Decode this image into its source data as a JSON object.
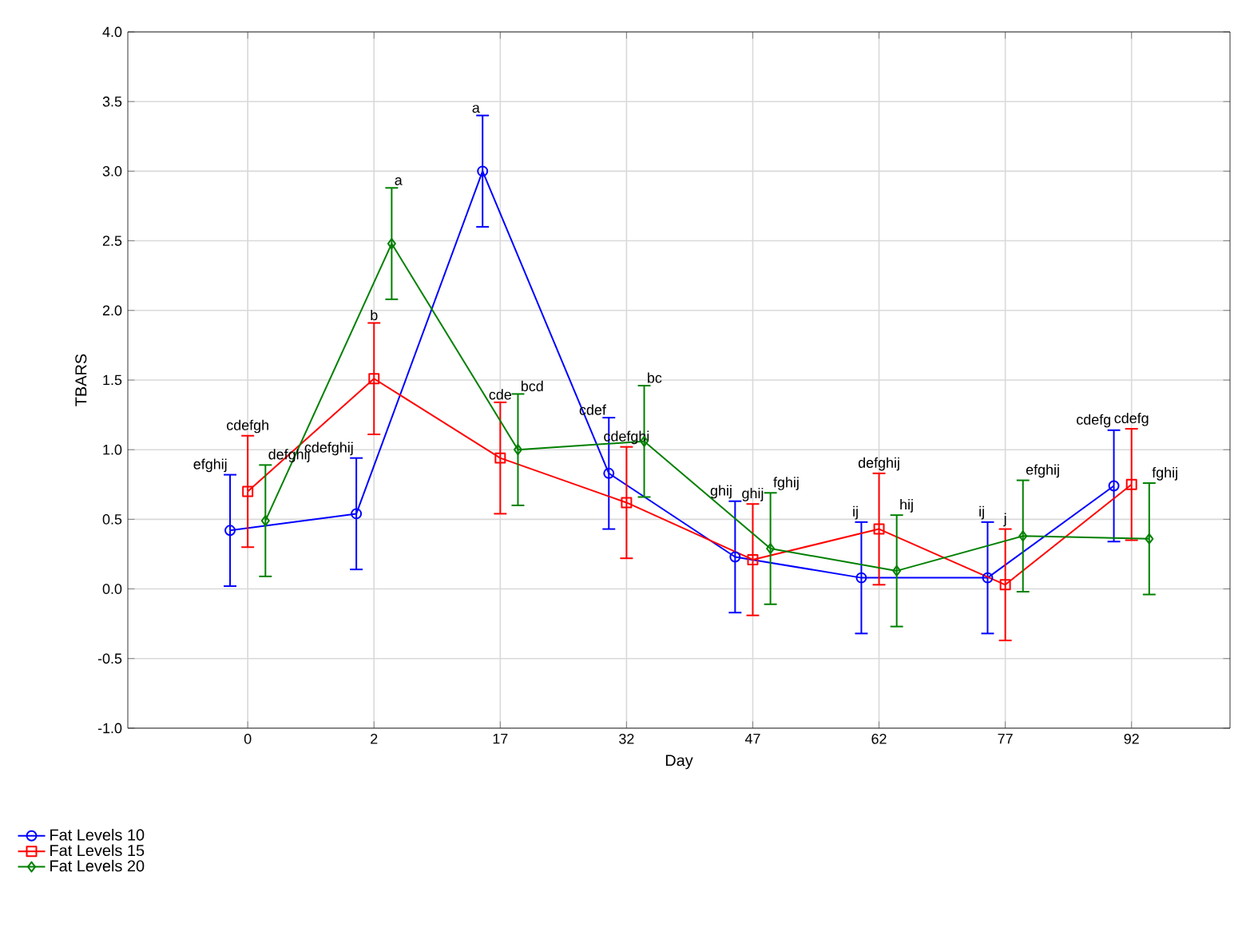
{
  "chart_data": {
    "type": "line",
    "xlabel": "Day",
    "ylabel": "TBARS",
    "categories": [
      "0",
      "2",
      "17",
      "32",
      "47",
      "62",
      "77",
      "92"
    ],
    "series": [
      {
        "name": "Fat Levels      10",
        "color": "#0000ff",
        "marker": "circle",
        "values": [
          0.42,
          0.54,
          3.0,
          0.83,
          0.23,
          0.08,
          0.08,
          0.74
        ],
        "errors": [
          0.4,
          0.4,
          0.4,
          0.4,
          0.4,
          0.4,
          0.4,
          0.4
        ]
      },
      {
        "name": "Fat Levels      15",
        "color": "#ff0000",
        "marker": "square",
        "values": [
          0.7,
          1.51,
          0.94,
          0.62,
          0.21,
          0.43,
          0.03,
          0.75
        ],
        "errors": [
          0.4,
          0.4,
          0.4,
          0.4,
          0.4,
          0.4,
          0.4,
          0.4
        ]
      },
      {
        "name": "Fat Levels      20",
        "color": "#008000",
        "marker": "diamond",
        "values": [
          0.49,
          2.48,
          1.0,
          1.06,
          0.29,
          0.13,
          0.38,
          0.36
        ],
        "errors": [
          0.4,
          0.4,
          0.4,
          0.4,
          0.4,
          0.4,
          0.4,
          0.4
        ]
      }
    ],
    "ylim": [
      -1.0,
      4.0
    ],
    "yticks": [
      {
        "value": -1.0,
        "label": "-1.0"
      },
      {
        "value": -0.5,
        "label": "-0.5"
      },
      {
        "value": 0.0,
        "label": "0.0"
      },
      {
        "value": 0.5,
        "label": "0.5"
      },
      {
        "value": 1.0,
        "label": "1.0"
      },
      {
        "value": 1.5,
        "label": "1.5"
      },
      {
        "value": 2.0,
        "label": "2.0"
      },
      {
        "value": 2.5,
        "label": "2.5"
      },
      {
        "value": 3.0,
        "label": "3.0"
      },
      {
        "value": 3.5,
        "label": "3.5"
      },
      {
        "value": 4.0,
        "label": "4.0"
      }
    ],
    "grid": true,
    "legend": "bottom left",
    "line_style": "solid",
    "annotations": [
      "efghij",
      "cdefghij",
      "a",
      "cdef",
      "ghij",
      "ij",
      "ij",
      "cdefg",
      "cdefgh",
      "b",
      "cde",
      "cdefghi",
      "ghij",
      "defghij",
      "j",
      "cdefg",
      "defghij",
      "a",
      "bcd",
      "bc",
      "fghij",
      "hij",
      "efghij",
      "fghij"
    ]
  }
}
